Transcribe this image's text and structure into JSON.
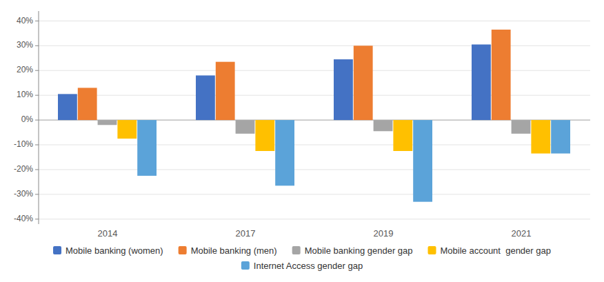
{
  "chart_data": {
    "type": "bar",
    "categories": [
      "2014",
      "2017",
      "2019",
      "2021"
    ],
    "series": [
      {
        "name": "Mobile banking (women)",
        "color": "#4472C4",
        "values": [
          10.5,
          18.0,
          24.5,
          30.5
        ]
      },
      {
        "name": "Mobile banking (men)",
        "color": "#ED7D31",
        "values": [
          13.0,
          23.5,
          30.0,
          36.5
        ]
      },
      {
        "name": "Mobile banking gender gap",
        "color": "#A5A5A5",
        "values": [
          -2.0,
          -5.5,
          -4.5,
          -5.5
        ]
      },
      {
        "name": "Mobile account  gender gap",
        "color": "#FFC000",
        "values": [
          -7.5,
          -12.5,
          -12.5,
          -13.5
        ]
      },
      {
        "name": "Internet Access gender gap",
        "color": "#5BA3D9",
        "values": [
          -22.5,
          -26.5,
          -33.0,
          -13.5
        ]
      }
    ],
    "ylim": [
      -42,
      44
    ],
    "yticks": [
      {
        "value": -40,
        "label": "-40%"
      },
      {
        "value": -30,
        "label": "-30%"
      },
      {
        "value": -20,
        "label": "-20%"
      },
      {
        "value": -10,
        "label": "-10%"
      },
      {
        "value": 0,
        "label": "0%"
      },
      {
        "value": 10,
        "label": "10%"
      },
      {
        "value": 20,
        "label": "20%"
      },
      {
        "value": 30,
        "label": "30%"
      },
      {
        "value": 40,
        "label": "40%"
      }
    ],
    "grid": true,
    "legend": "bottom"
  }
}
